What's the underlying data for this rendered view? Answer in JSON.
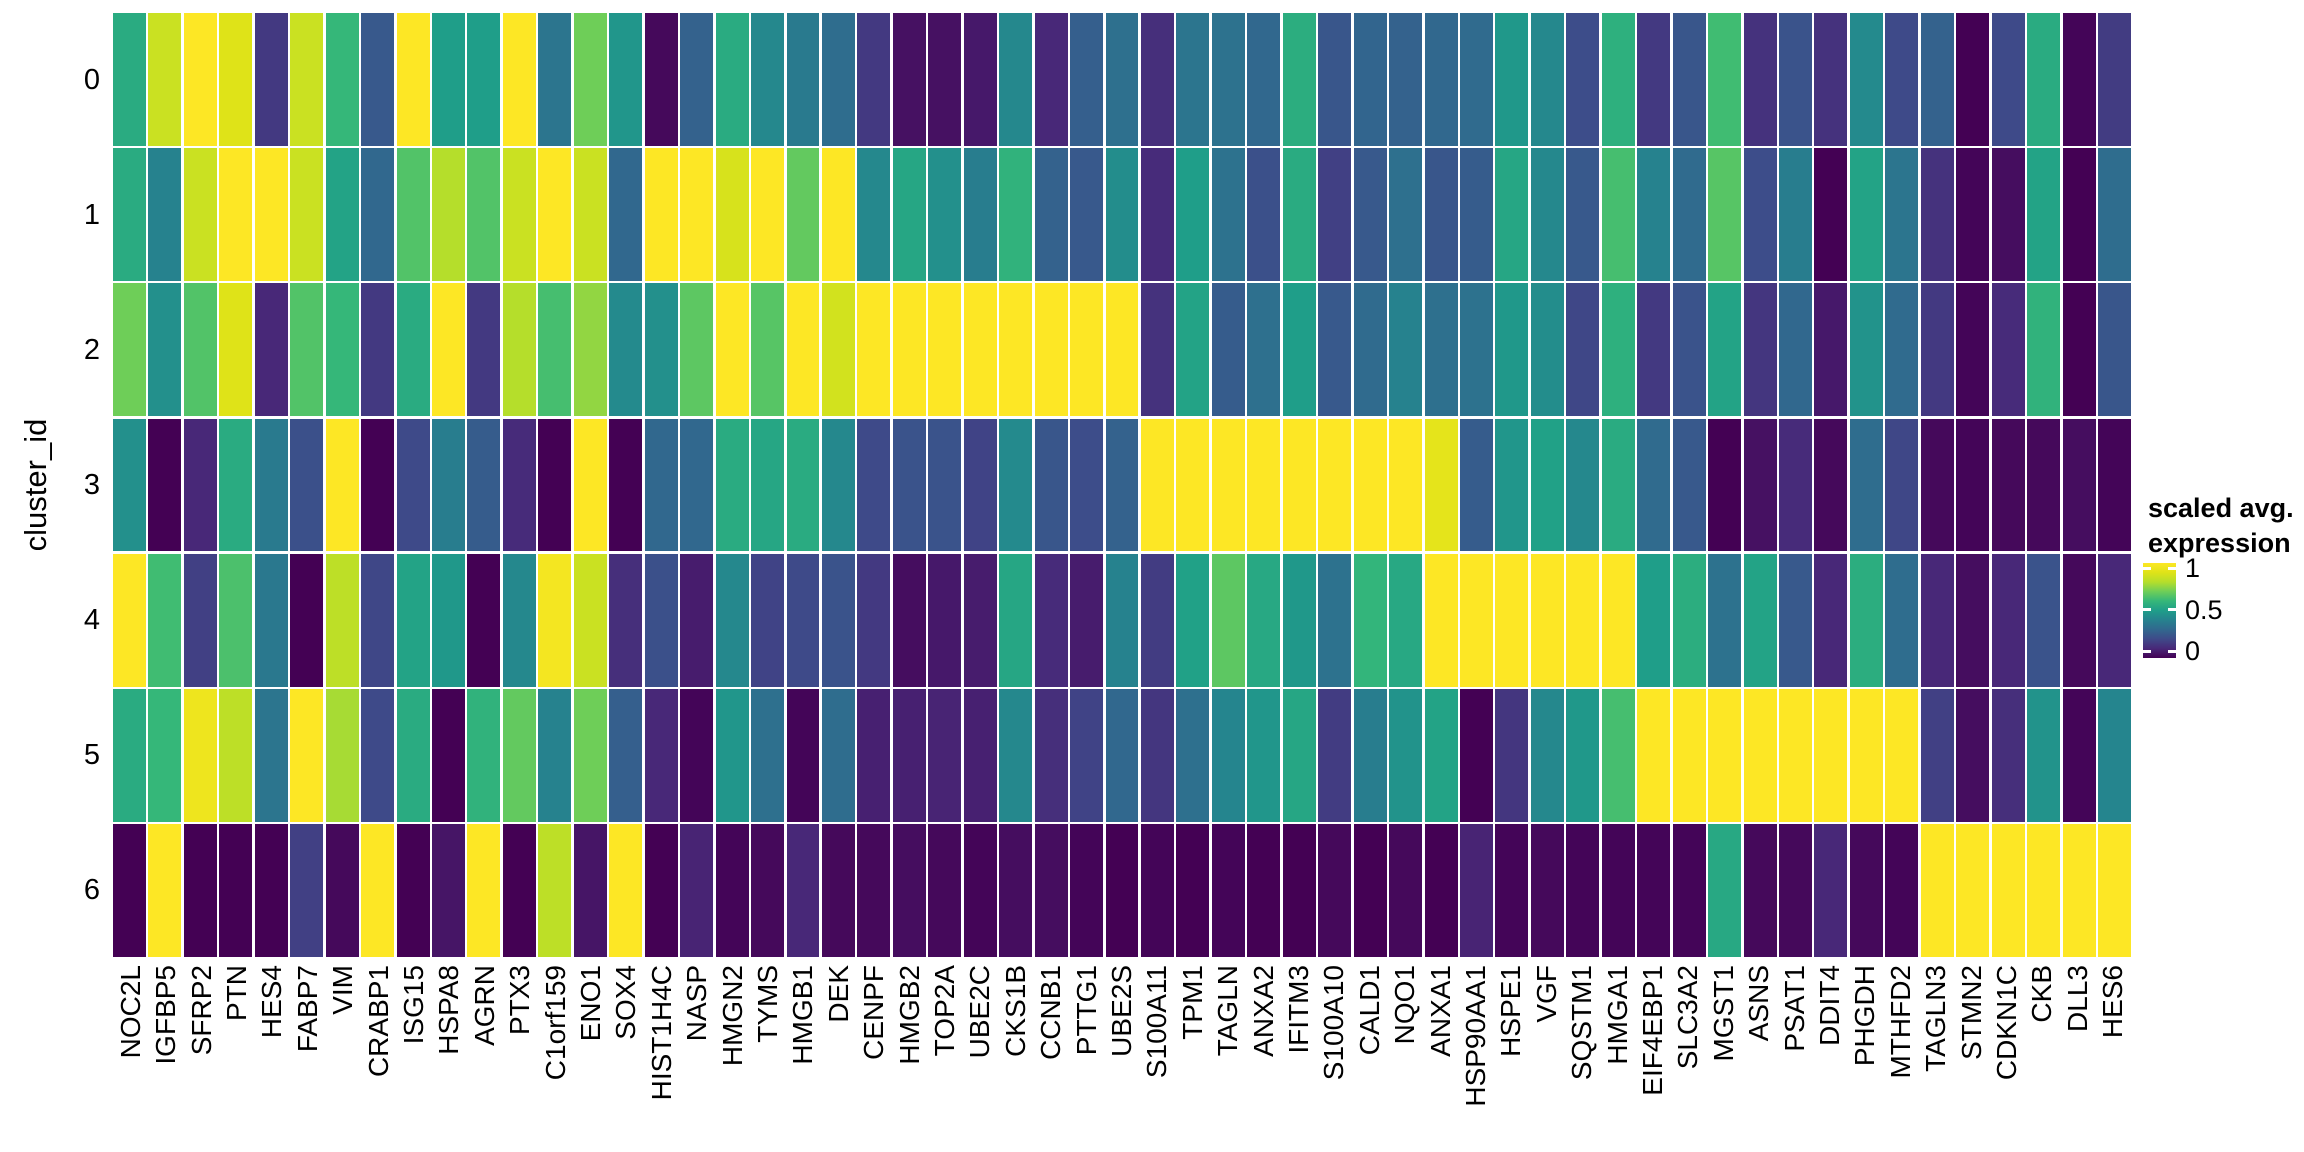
{
  "chart_data": {
    "type": "heatmap",
    "title": "",
    "xlabel": "",
    "ylabel": "cluster_id",
    "legend_position": "right",
    "grid": false,
    "value_range": [
      0,
      1
    ],
    "colormap": "viridis",
    "colormap_stops": [
      [
        0.0,
        "#440154"
      ],
      [
        0.1,
        "#482878"
      ],
      [
        0.2,
        "#3e4a89"
      ],
      [
        0.3,
        "#31688e"
      ],
      [
        0.4,
        "#26828e"
      ],
      [
        0.5,
        "#1f9e89"
      ],
      [
        0.6,
        "#35b779"
      ],
      [
        0.7,
        "#6ece58"
      ],
      [
        0.8,
        "#b5de2b"
      ],
      [
        0.9,
        "#dfe318"
      ],
      [
        1.0,
        "#fde725"
      ]
    ],
    "legend": {
      "title_line1": "scaled avg.",
      "title_line2": "expression",
      "ticks": [
        {
          "label": "1",
          "value": 1.0
        },
        {
          "label": "0.5",
          "value": 0.5
        },
        {
          "label": "0",
          "value": 0.0
        }
      ]
    },
    "y_categories": [
      "0",
      "1",
      "2",
      "3",
      "4",
      "5",
      "6"
    ],
    "x_categories": [
      "NOC2L",
      "IGFBP5",
      "SFRP2",
      "PTN",
      "HES4",
      "FABP7",
      "VIM",
      "CRABP1",
      "ISG15",
      "HSPA8",
      "AGRN",
      "PTX3",
      "C1orf159",
      "ENO1",
      "SOX4",
      "HIST1H4C",
      "NASP",
      "HMGN2",
      "TYMS",
      "HMGB1",
      "DEK",
      "CENPF",
      "HMGB2",
      "TOP2A",
      "UBE2C",
      "CKS1B",
      "CCNB1",
      "PTTG1",
      "UBE2S",
      "S100A11",
      "TPM1",
      "TAGLN",
      "ANXA2",
      "IFITM3",
      "S100A10",
      "CALD1",
      "NQO1",
      "ANXA1",
      "HSP90AA1",
      "HSPE1",
      "VGF",
      "SQSTM1",
      "HMGA1",
      "EIF4EBP1",
      "SLC3A2",
      "MGST1",
      "ASNS",
      "PSAT1",
      "DDIT4",
      "PHGDH",
      "MTHFD2",
      "TAGLN3",
      "STMN2",
      "CDKN1C",
      "CKB",
      "DLL3",
      "HES6"
    ],
    "values": [
      [
        0.55,
        0.85,
        1.0,
        0.9,
        0.15,
        0.85,
        0.6,
        0.25,
        1.0,
        0.5,
        0.5,
        1.0,
        0.35,
        0.7,
        0.47,
        0.02,
        0.28,
        0.55,
        0.42,
        0.37,
        0.32,
        0.15,
        0.04,
        0.04,
        0.06,
        0.42,
        0.1,
        0.27,
        0.33,
        0.12,
        0.35,
        0.34,
        0.3,
        0.56,
        0.24,
        0.29,
        0.28,
        0.3,
        0.31,
        0.48,
        0.42,
        0.21,
        0.57,
        0.15,
        0.24,
        0.62,
        0.13,
        0.23,
        0.13,
        0.43,
        0.2,
        0.28,
        0.0,
        0.2,
        0.55,
        0.01,
        0.16
      ],
      [
        0.55,
        0.4,
        0.85,
        1.0,
        1.0,
        0.85,
        0.52,
        0.3,
        0.65,
        0.8,
        0.65,
        0.85,
        1.0,
        0.85,
        0.3,
        1.0,
        1.0,
        0.88,
        1.0,
        0.68,
        1.0,
        0.42,
        0.53,
        0.45,
        0.38,
        0.58,
        0.28,
        0.25,
        0.44,
        0.11,
        0.5,
        0.34,
        0.22,
        0.55,
        0.17,
        0.25,
        0.33,
        0.24,
        0.26,
        0.53,
        0.42,
        0.25,
        0.63,
        0.4,
        0.31,
        0.66,
        0.21,
        0.38,
        0.0,
        0.52,
        0.35,
        0.13,
        0.01,
        0.03,
        0.52,
        0.0,
        0.32
      ],
      [
        0.7,
        0.45,
        0.65,
        0.9,
        0.1,
        0.65,
        0.6,
        0.15,
        0.55,
        1.0,
        0.15,
        0.8,
        0.63,
        0.75,
        0.43,
        0.45,
        0.67,
        1.0,
        0.66,
        1.0,
        0.87,
        1.0,
        1.0,
        1.0,
        1.0,
        1.0,
        1.0,
        1.0,
        1.0,
        0.13,
        0.52,
        0.26,
        0.33,
        0.5,
        0.25,
        0.31,
        0.4,
        0.33,
        0.34,
        0.48,
        0.44,
        0.19,
        0.57,
        0.15,
        0.23,
        0.52,
        0.14,
        0.3,
        0.06,
        0.46,
        0.31,
        0.15,
        0.01,
        0.11,
        0.58,
        0.0,
        0.24
      ],
      [
        0.45,
        0.0,
        0.1,
        0.55,
        0.37,
        0.22,
        1.0,
        0.0,
        0.2,
        0.38,
        0.26,
        0.11,
        0.0,
        1.0,
        0.0,
        0.3,
        0.3,
        0.55,
        0.53,
        0.55,
        0.42,
        0.2,
        0.23,
        0.23,
        0.18,
        0.43,
        0.24,
        0.21,
        0.28,
        1.0,
        1.0,
        1.0,
        1.0,
        1.0,
        1.0,
        1.0,
        1.0,
        0.92,
        0.26,
        0.47,
        0.51,
        0.42,
        0.55,
        0.31,
        0.25,
        0.0,
        0.04,
        0.11,
        0.02,
        0.32,
        0.19,
        0.02,
        0.01,
        0.02,
        0.02,
        0.03,
        0.01
      ],
      [
        1.0,
        0.62,
        0.17,
        0.64,
        0.36,
        0.0,
        0.82,
        0.19,
        0.52,
        0.48,
        0.0,
        0.42,
        0.97,
        0.85,
        0.12,
        0.22,
        0.07,
        0.42,
        0.18,
        0.2,
        0.23,
        0.15,
        0.03,
        0.06,
        0.07,
        0.53,
        0.11,
        0.07,
        0.4,
        0.16,
        0.51,
        0.67,
        0.54,
        0.48,
        0.34,
        0.59,
        0.54,
        1.0,
        1.0,
        1.0,
        1.0,
        1.0,
        1.0,
        0.5,
        0.56,
        0.34,
        0.52,
        0.25,
        0.1,
        0.56,
        0.32,
        0.1,
        0.03,
        0.1,
        0.23,
        0.02,
        0.1
      ],
      [
        0.55,
        0.6,
        0.95,
        0.82,
        0.35,
        1.0,
        0.78,
        0.2,
        0.55,
        0.0,
        0.58,
        0.68,
        0.4,
        0.7,
        0.27,
        0.1,
        0.01,
        0.47,
        0.33,
        0.01,
        0.32,
        0.08,
        0.08,
        0.09,
        0.08,
        0.42,
        0.12,
        0.18,
        0.3,
        0.14,
        0.33,
        0.41,
        0.47,
        0.53,
        0.16,
        0.38,
        0.46,
        0.52,
        0.0,
        0.14,
        0.42,
        0.48,
        0.63,
        1.0,
        1.0,
        1.0,
        1.0,
        1.0,
        1.0,
        1.0,
        1.0,
        0.17,
        0.03,
        0.12,
        0.46,
        0.01,
        0.41
      ],
      [
        0.0,
        1.0,
        0.0,
        0.0,
        0.0,
        0.17,
        0.02,
        1.0,
        0.0,
        0.05,
        1.0,
        0.0,
        0.82,
        0.05,
        1.0,
        0.0,
        0.09,
        0.01,
        0.02,
        0.1,
        0.02,
        0.02,
        0.03,
        0.02,
        0.01,
        0.03,
        0.03,
        0.01,
        0.0,
        0.01,
        0.0,
        0.01,
        0.0,
        0.0,
        0.02,
        0.0,
        0.02,
        0.0,
        0.09,
        0.01,
        0.02,
        0.01,
        0.01,
        0.01,
        0.01,
        0.54,
        0.02,
        0.02,
        0.1,
        0.02,
        0.01,
        1.0,
        1.0,
        1.0,
        1.0,
        1.0,
        1.0
      ]
    ]
  }
}
